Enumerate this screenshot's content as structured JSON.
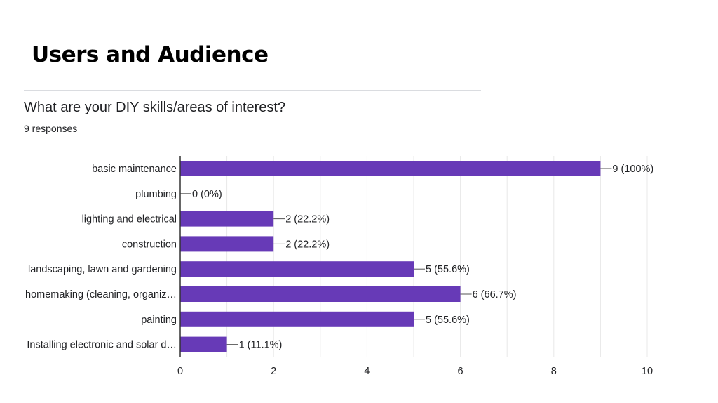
{
  "slide": {
    "title": "Users and Audience"
  },
  "form": {
    "question": "What are your DIY skills/areas of interest?",
    "responses": "9 responses"
  },
  "colors": {
    "bar": "#673ab7",
    "grid": "#e8e8e8",
    "axis": "#333333",
    "text": "#202124"
  },
  "chart_data": {
    "type": "bar",
    "orientation": "horizontal",
    "categories": [
      "basic maintenance",
      "plumbing",
      "lighting and electrical",
      "construction",
      "landscaping, lawn and gardening",
      "homemaking (cleaning, organiz…",
      "painting",
      "Installing electronic and solar d…"
    ],
    "values": [
      9,
      0,
      2,
      2,
      5,
      6,
      5,
      1
    ],
    "data_labels": [
      "9 (100%)",
      "0 (0%)",
      "2 (22.2%)",
      "2 (22.2%)",
      "5 (55.6%)",
      "6 (66.7%)",
      "5 (55.6%)",
      "1 (11.1%)"
    ],
    "xlim": [
      0,
      10
    ],
    "x_ticks": [
      0,
      2,
      4,
      6,
      8,
      10
    ],
    "grid": true,
    "title": "",
    "xlabel": "",
    "ylabel": ""
  }
}
